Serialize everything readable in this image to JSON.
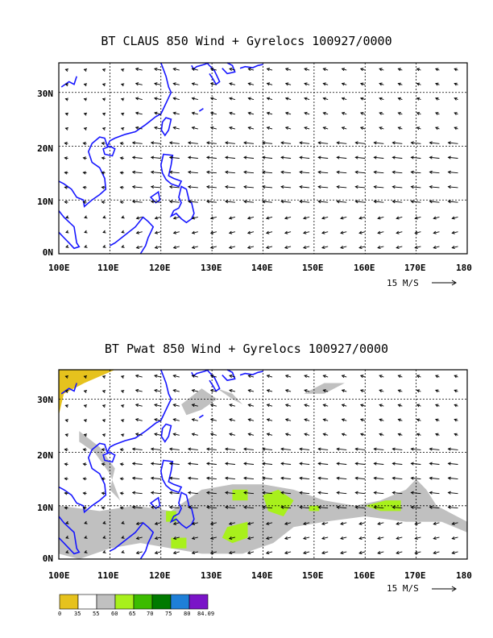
{
  "panels": [
    {
      "title": "BT CLAUS 850 Wind + Gyrelocs 100927/0000",
      "x_ticks": [
        "100E",
        "110E",
        "120E",
        "130E",
        "140E",
        "150E",
        "160E",
        "170E",
        "180"
      ],
      "y_ticks": [
        "0N",
        "10N",
        "20N",
        "30N"
      ],
      "scale_label": "15 M/S"
    },
    {
      "title": "BT Pwat 850 Wind + Gyrelocs 100927/0000",
      "x_ticks": [
        "100E",
        "110E",
        "120E",
        "130E",
        "140E",
        "150E",
        "160E",
        "170E",
        "180"
      ],
      "y_ticks": [
        "0N",
        "10N",
        "20N",
        "30N"
      ],
      "scale_label": "15 M/S"
    }
  ],
  "colorbar": {
    "labels": [
      "0",
      "35",
      "55",
      "60",
      "65",
      "70",
      "75",
      "80",
      "84.09"
    ],
    "colors": [
      "#e6c21d",
      "#ffffff",
      "#c0c0c0",
      "#a8f01c",
      "#3cbc00",
      "#007a00",
      "#1e7fd8",
      "#7a14c8"
    ]
  },
  "colors": {
    "coast": "#1616ff",
    "moist": "#c0c0c0",
    "very_moist": "#a8f01c",
    "dry": "#e6c21d"
  }
}
